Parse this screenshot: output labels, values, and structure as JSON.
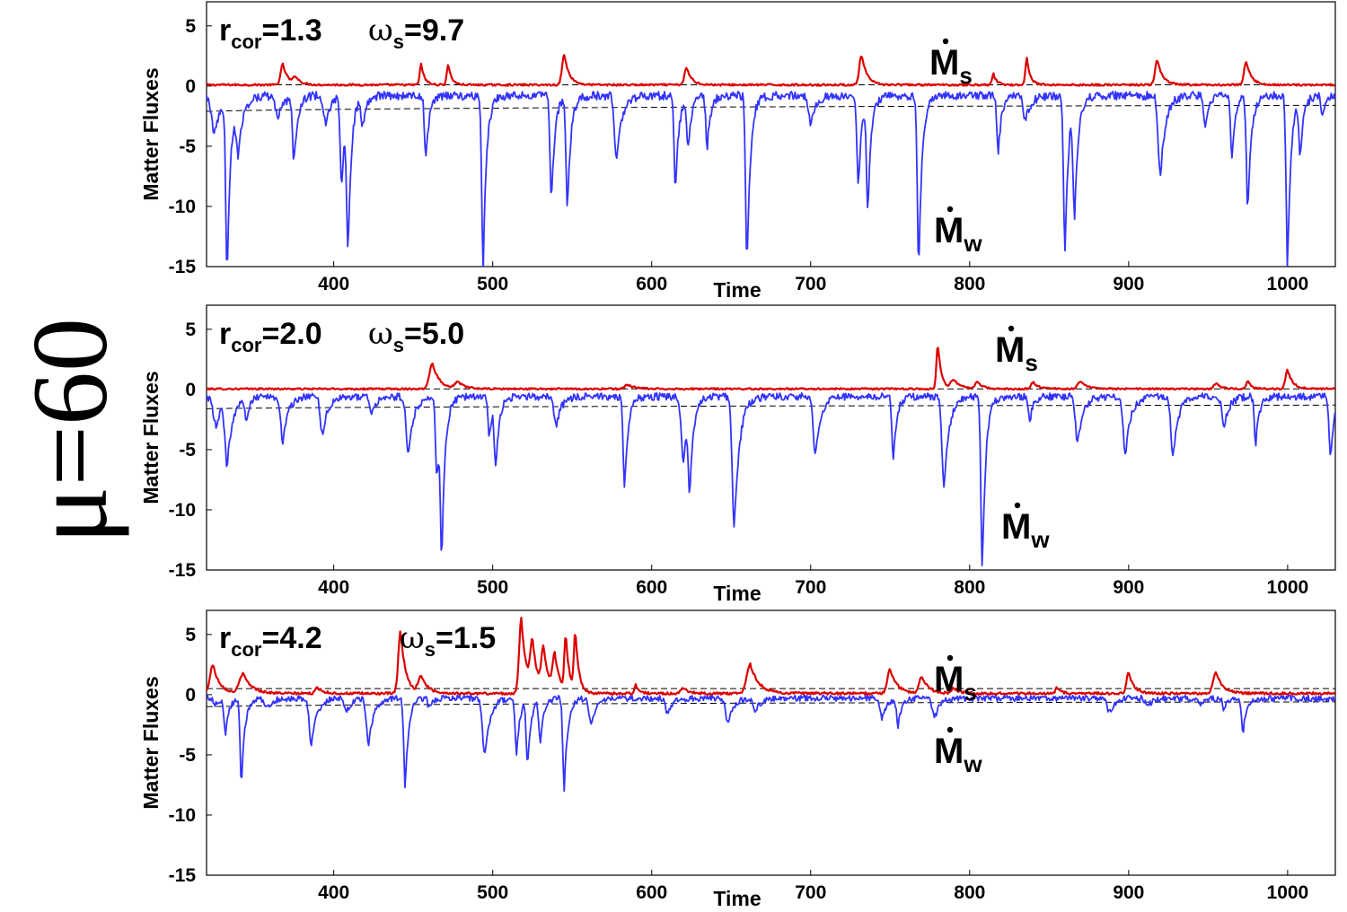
{
  "figure_label": "μ=60",
  "chart_data": [
    {
      "type": "line",
      "ylabel": "Matter Fluxes",
      "xlabel": "Time",
      "xlim": [
        320,
        1030
      ],
      "ylim": [
        -15,
        7
      ],
      "xticks": [
        400,
        500,
        600,
        700,
        800,
        900,
        1000
      ],
      "yticks": [
        5,
        0,
        -5,
        -10,
        -15
      ],
      "annotation": {
        "r_base": "r",
        "r_sub": "cor",
        "r_val": "=1.3",
        "w_base": "ω",
        "w_sub": "s",
        "w_val": "=9.7"
      },
      "series_labels": {
        "s_base": "M",
        "s_sub": "s",
        "w_base": "M",
        "w_sub": "w"
      },
      "baselines": {
        "red_mean": 0.1,
        "blue_mean_start": -2.1,
        "blue_mean_end": -1.6
      },
      "series": [
        {
          "name": "Ṁs",
          "color": "#dd0000",
          "base": 0.1,
          "noise": 0.08,
          "spikes": [
            [
              368,
              1.8,
              3
            ],
            [
              376,
              0.7,
              3
            ],
            [
              455,
              1.8,
              2
            ],
            [
              472,
              1.8,
              2
            ],
            [
              545,
              2.6,
              3
            ],
            [
              622,
              1.5,
              3
            ],
            [
              732,
              2.6,
              3
            ],
            [
              815,
              1.0,
              2
            ],
            [
              836,
              2.3,
              2
            ],
            [
              918,
              2.2,
              3
            ],
            [
              974,
              2.0,
              3
            ]
          ]
        },
        {
          "name": "Ṁw",
          "color": "#3333ff",
          "base": -0.8,
          "noise": 0.35,
          "spikes": [
            [
              325,
              -4.0,
              4
            ],
            [
              333,
              -15,
              2
            ],
            [
              340,
              -5.0,
              3
            ],
            [
              365,
              -2.5,
              4
            ],
            [
              375,
              -6.3,
              2
            ],
            [
              395,
              -3.0,
              3
            ],
            [
              405,
              -8.5,
              2
            ],
            [
              409,
              -12.5,
              2
            ],
            [
              418,
              -3.5,
              2
            ],
            [
              458,
              -6.0,
              2
            ],
            [
              494,
              -15,
              2
            ],
            [
              537,
              -9.8,
              2
            ],
            [
              547,
              -10.3,
              2
            ],
            [
              578,
              -6.0,
              3
            ],
            [
              615,
              -8.5,
              2
            ],
            [
              623,
              -5.0,
              2
            ],
            [
              635,
              -5.0,
              2
            ],
            [
              660,
              -15,
              2
            ],
            [
              700,
              -3.0,
              3
            ],
            [
              730,
              -8.5,
              2
            ],
            [
              736,
              -9.8,
              2
            ],
            [
              768,
              -15,
              2
            ],
            [
              818,
              -5.5,
              2
            ],
            [
              835,
              -3.0,
              3
            ],
            [
              860,
              -14,
              2
            ],
            [
              866,
              -10.5,
              2
            ],
            [
              920,
              -7.5,
              3
            ],
            [
              948,
              -3.5,
              2
            ],
            [
              965,
              -6.0,
              2
            ],
            [
              975,
              -10.5,
              2
            ],
            [
              1000,
              -15,
              2
            ],
            [
              1008,
              -5.5,
              2
            ],
            [
              1022,
              -2.5,
              2
            ]
          ]
        }
      ]
    },
    {
      "type": "line",
      "ylabel": "Matter Fluxes",
      "xlabel": "Time",
      "xlim": [
        320,
        1030
      ],
      "ylim": [
        -15,
        7
      ],
      "xticks": [
        400,
        500,
        600,
        700,
        800,
        900,
        1000
      ],
      "yticks": [
        5,
        0,
        -5,
        -10,
        -15
      ],
      "annotation": {
        "r_base": "r",
        "r_sub": "cor",
        "r_val": "=2.0",
        "w_base": "ω",
        "w_sub": "s",
        "w_val": "=5.0"
      },
      "series_labels": {
        "s_base": "M",
        "s_sub": "s",
        "w_base": "M",
        "w_sub": "w"
      },
      "baselines": {
        "red_mean": 0.05,
        "blue_mean_start": -1.6,
        "blue_mean_end": -1.3
      },
      "series": [
        {
          "name": "Ṁs",
          "color": "#dd0000",
          "base": 0.05,
          "noise": 0.07,
          "spikes": [
            [
              462,
              2.2,
              4
            ],
            [
              478,
              0.6,
              4
            ],
            [
              585,
              0.4,
              4
            ],
            [
              780,
              3.8,
              2
            ],
            [
              790,
              0.8,
              4
            ],
            [
              805,
              0.6,
              3
            ],
            [
              840,
              0.6,
              3
            ],
            [
              870,
              0.7,
              4
            ],
            [
              955,
              0.5,
              3
            ],
            [
              975,
              0.7,
              2
            ],
            [
              1000,
              1.6,
              3
            ]
          ]
        },
        {
          "name": "Ṁw",
          "color": "#3333ff",
          "base": -0.6,
          "noise": 0.3,
          "spikes": [
            [
              326,
              -3.0,
              4
            ],
            [
              333,
              -5.8,
              3
            ],
            [
              345,
              -2.5,
              2
            ],
            [
              368,
              -4.3,
              3
            ],
            [
              393,
              -3.8,
              3
            ],
            [
              424,
              -2.0,
              3
            ],
            [
              447,
              -5.5,
              3
            ],
            [
              465,
              -7.5,
              2
            ],
            [
              468,
              -12,
              2
            ],
            [
              498,
              -4.0,
              2
            ],
            [
              502,
              -6.0,
              2
            ],
            [
              540,
              -3.0,
              3
            ],
            [
              583,
              -8.2,
              2
            ],
            [
              620,
              -6.0,
              3
            ],
            [
              624,
              -7.2,
              2
            ],
            [
              652,
              -11.5,
              3
            ],
            [
              703,
              -5.5,
              3
            ],
            [
              752,
              -5.8,
              2
            ],
            [
              784,
              -8.0,
              3
            ],
            [
              808,
              -15,
              2
            ],
            [
              838,
              -2.5,
              2
            ],
            [
              868,
              -4.5,
              3
            ],
            [
              898,
              -5.5,
              3
            ],
            [
              928,
              -5.5,
              3
            ],
            [
              960,
              -3.0,
              3
            ],
            [
              980,
              -4.5,
              2
            ],
            [
              1027,
              -5.8,
              2
            ]
          ]
        }
      ]
    },
    {
      "type": "line",
      "ylabel": "Matter Fluxes",
      "xlabel": "Time",
      "xlim": [
        320,
        1030
      ],
      "ylim": [
        -15,
        7
      ],
      "xticks": [
        400,
        500,
        600,
        700,
        800,
        900,
        1000
      ],
      "yticks": [
        5,
        0,
        -5,
        -10,
        -15
      ],
      "annotation": {
        "r_base": "r",
        "r_sub": "cor",
        "r_val": "=4.2",
        "w_base": "ω",
        "w_sub": "s",
        "w_val": "=1.5"
      },
      "series_labels": {
        "s_base": "M",
        "s_sub": "s",
        "w_base": "M",
        "w_sub": "w"
      },
      "baselines": {
        "red_mean": 0.5,
        "blue_mean_start": -1.0,
        "blue_mean_end": -0.6
      },
      "series": [
        {
          "name": "Ṁs",
          "color": "#dd0000",
          "base": 0.1,
          "noise": 0.1,
          "spikes": [
            [
              324,
              2.5,
              4
            ],
            [
              343,
              1.7,
              5
            ],
            [
              390,
              0.6,
              3
            ],
            [
              442,
              5.3,
              3
            ],
            [
              455,
              1.5,
              4
            ],
            [
              518,
              6.3,
              3
            ],
            [
              525,
              4.0,
              3
            ],
            [
              532,
              3.5,
              3
            ],
            [
              539,
              3.0,
              3
            ],
            [
              546,
              4.6,
              2
            ],
            [
              552,
              5.0,
              2
            ],
            [
              590,
              0.8,
              2
            ],
            [
              620,
              0.6,
              3
            ],
            [
              662,
              2.5,
              5
            ],
            [
              750,
              2.1,
              4
            ],
            [
              770,
              1.5,
              4
            ],
            [
              790,
              0.6,
              3
            ],
            [
              855,
              0.6,
              2
            ],
            [
              900,
              1.8,
              3
            ],
            [
              955,
              1.8,
              4
            ]
          ]
        },
        {
          "name": "Ṁw",
          "color": "#3333ff",
          "base": -0.3,
          "noise": 0.25,
          "spikes": [
            [
              326,
              -0.8,
              3
            ],
            [
              332,
              -3.3,
              2
            ],
            [
              342,
              -7.2,
              2
            ],
            [
              358,
              -1.2,
              3
            ],
            [
              386,
              -4.3,
              3
            ],
            [
              408,
              -1.5,
              3
            ],
            [
              422,
              -4.0,
              3
            ],
            [
              445,
              -7.7,
              2
            ],
            [
              460,
              -1.0,
              2
            ],
            [
              495,
              -5.2,
              3
            ],
            [
              515,
              -5.0,
              2
            ],
            [
              522,
              -5.8,
              2
            ],
            [
              530,
              -4.0,
              2
            ],
            [
              545,
              -7.8,
              2
            ],
            [
              562,
              -2.5,
              3
            ],
            [
              610,
              -1.5,
              3
            ],
            [
              648,
              -2.5,
              3
            ],
            [
              665,
              -1.5,
              3
            ],
            [
              745,
              -2.0,
              3
            ],
            [
              755,
              -2.5,
              2
            ],
            [
              778,
              -2.0,
              3
            ],
            [
              888,
              -1.5,
              3
            ],
            [
              912,
              -1.0,
              3
            ],
            [
              945,
              -1.0,
              2
            ],
            [
              960,
              -1.3,
              2
            ],
            [
              972,
              -3.2,
              2
            ]
          ]
        }
      ]
    }
  ]
}
